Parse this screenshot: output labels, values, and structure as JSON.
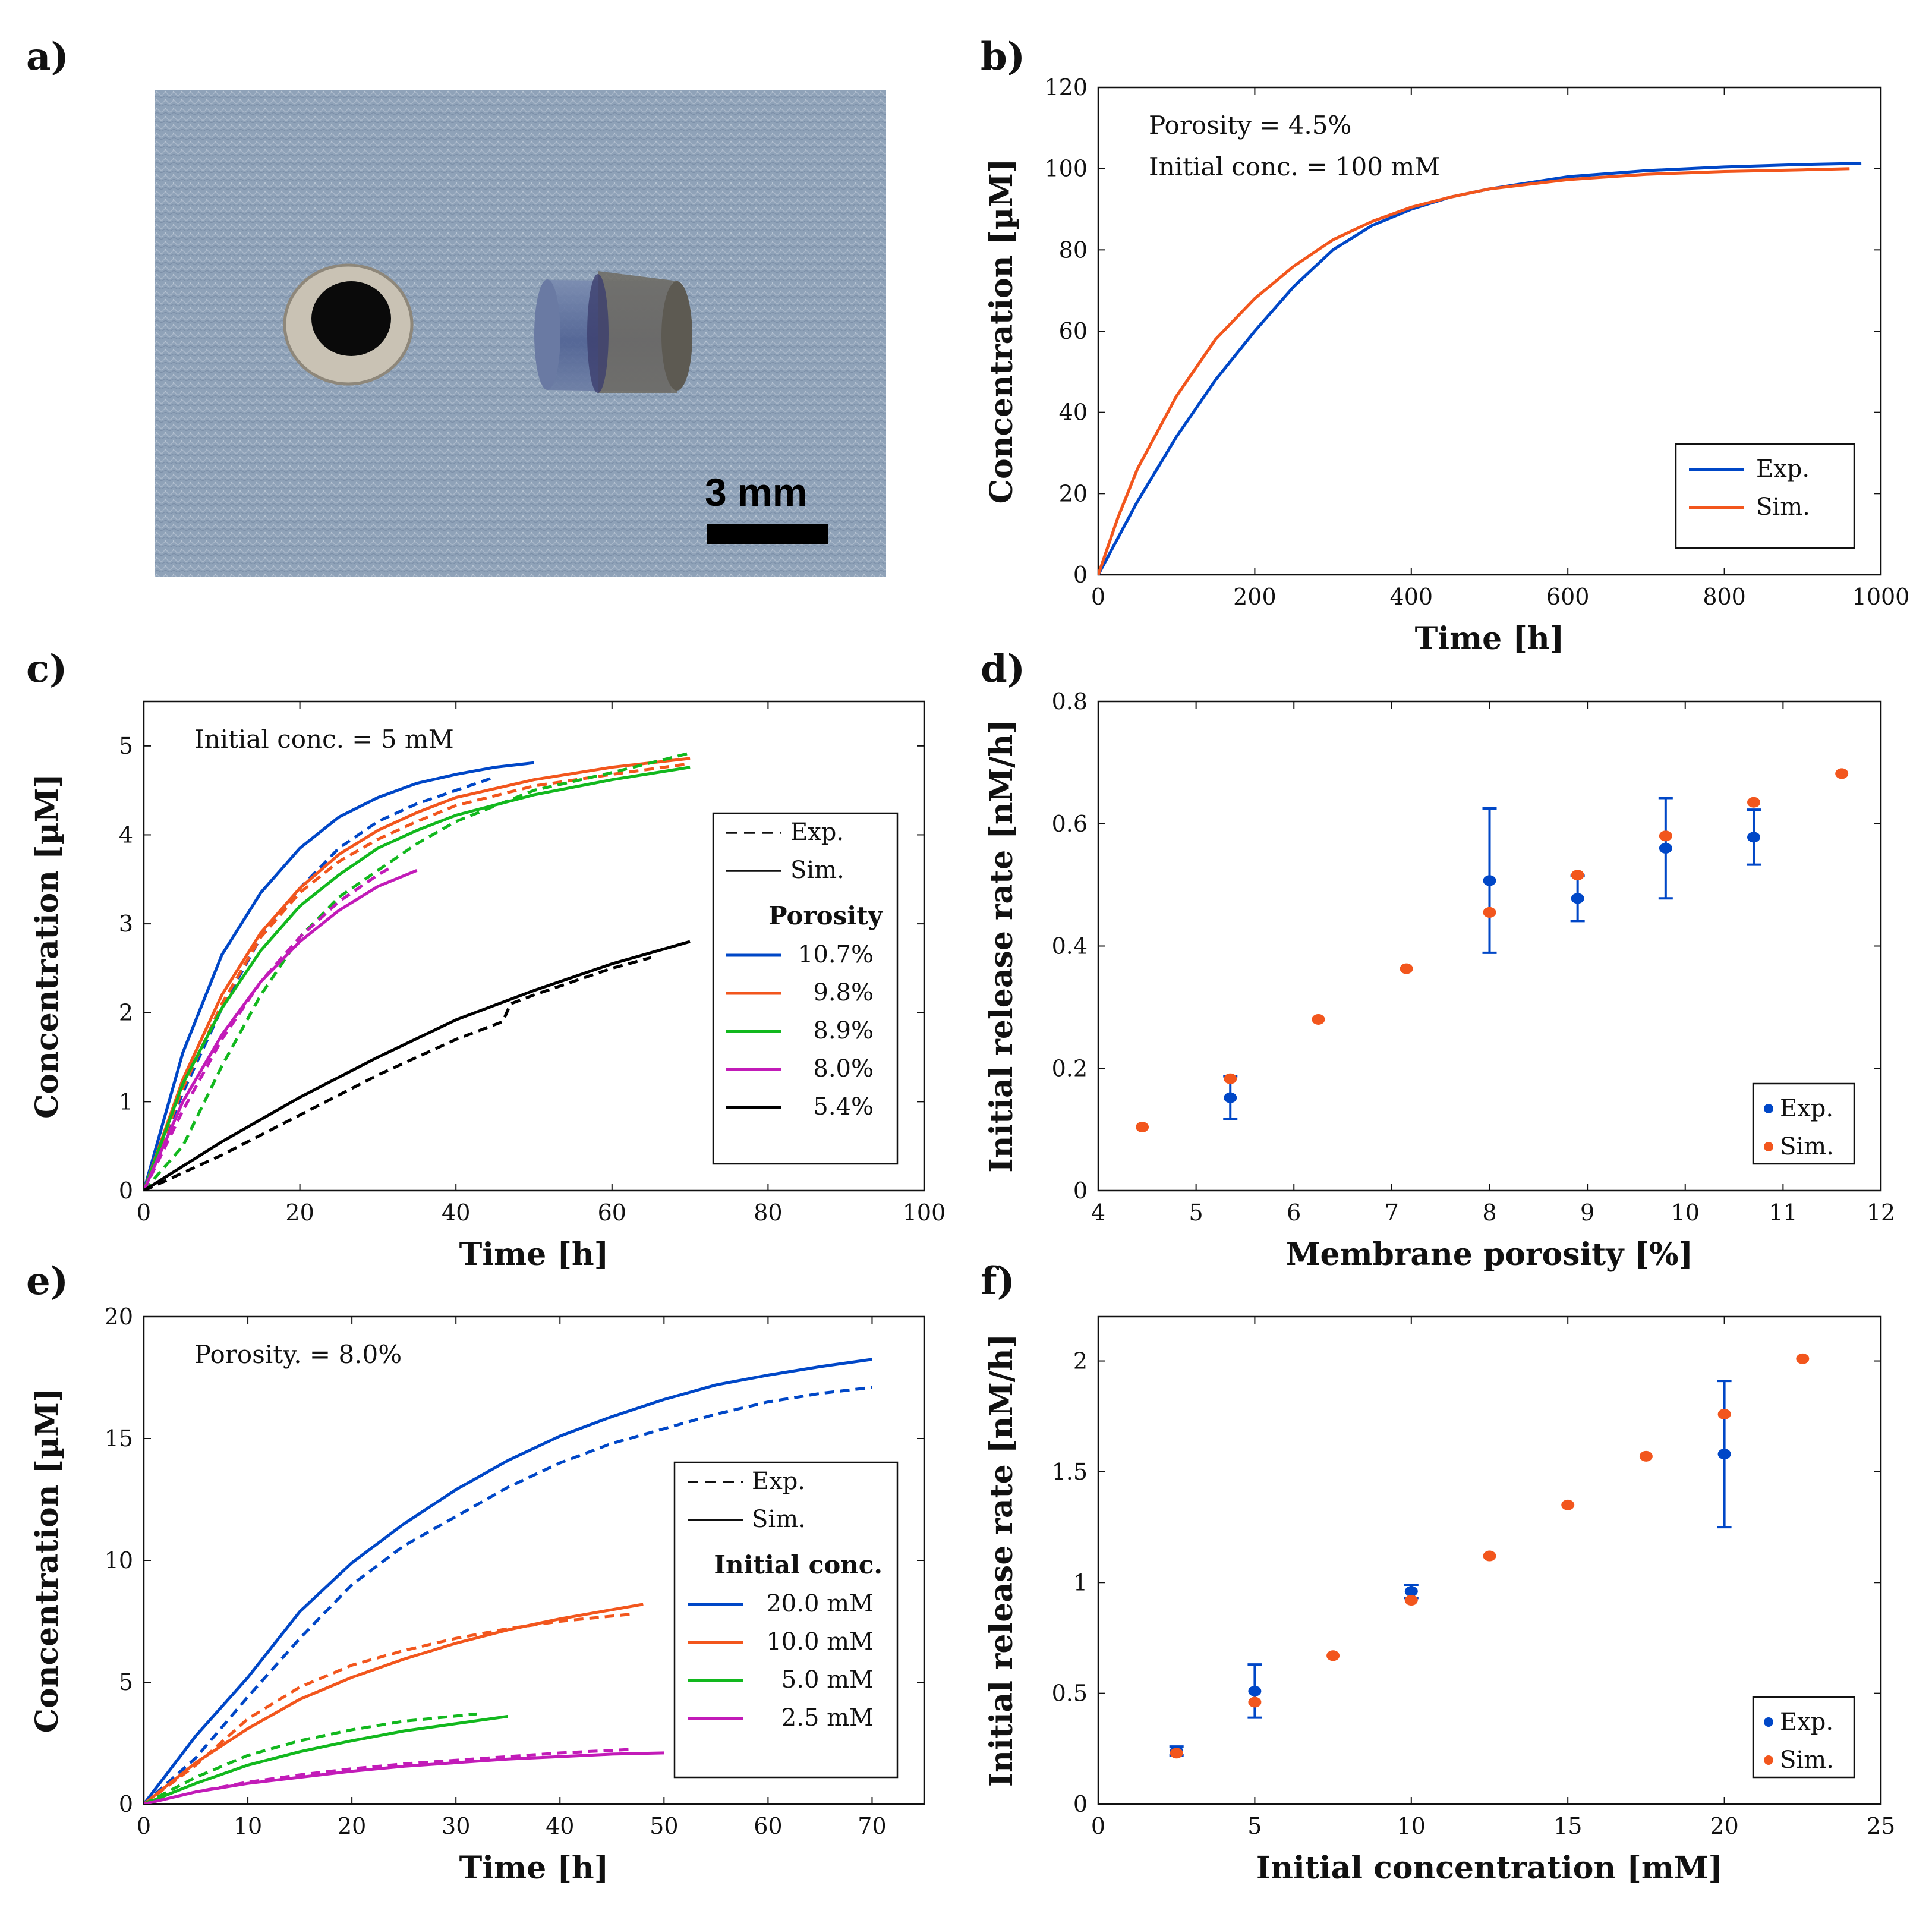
{
  "panels": {
    "a": "a)",
    "b": "b)",
    "c": "c)",
    "d": "d)",
    "e": "e)",
    "f": "f)"
  },
  "photo": {
    "scale_bar_label": "3 mm",
    "colors": {
      "background": "#8fa2b8",
      "ring": "#c9c2b4",
      "hole": "#0a0a0a",
      "cylinder": "#5d6f98",
      "cap": "#6e6b62",
      "scale_bar": "#000000"
    }
  },
  "colors": {
    "exp_blue": "#0047c7",
    "sim_orange": "#f2561d",
    "c_blue": "#0047c7",
    "c_orange": "#f2561d",
    "c_green": "#12b81e",
    "c_magenta": "#c21bb8",
    "c_black": "#000000"
  },
  "chart_data": [
    {
      "id": "b",
      "type": "line",
      "xlabel": "Time [h]",
      "ylabel": "Concentration [µM]",
      "xlim": [
        0,
        1000
      ],
      "ylim": [
        0,
        120
      ],
      "xticks": [
        0,
        200,
        400,
        600,
        800,
        1000
      ],
      "yticks": [
        0,
        20,
        40,
        60,
        80,
        100,
        120
      ],
      "annotations": [
        "Porosity = 4.5%",
        "Initial conc. = 100 mM"
      ],
      "legend_position": "bottom-right",
      "legend": [
        {
          "label": "Exp.",
          "color": "#0047c7",
          "style": "solid"
        },
        {
          "label": "Sim.",
          "color": "#f2561d",
          "style": "solid"
        }
      ],
      "series": [
        {
          "name": "Exp.",
          "color": "#0047c7",
          "style": "solid",
          "x": [
            0,
            25,
            50,
            100,
            150,
            200,
            250,
            300,
            350,
            400,
            450,
            500,
            600,
            700,
            800,
            900,
            975
          ],
          "y": [
            0,
            9,
            18,
            34,
            48,
            60,
            71,
            80,
            86,
            90,
            93,
            95,
            98,
            99.5,
            100.4,
            101,
            101.3
          ]
        },
        {
          "name": "Sim.",
          "color": "#f2561d",
          "style": "solid",
          "x": [
            0,
            25,
            50,
            100,
            150,
            200,
            250,
            300,
            350,
            400,
            450,
            500,
            600,
            700,
            800,
            900,
            960
          ],
          "y": [
            0,
            14,
            26,
            44,
            58,
            68,
            76,
            82.5,
            87,
            90.5,
            93,
            95,
            97.3,
            98.6,
            99.3,
            99.7,
            100
          ]
        }
      ]
    },
    {
      "id": "c",
      "type": "line",
      "xlabel": "Time [h]",
      "ylabel": "Concentration [µM]",
      "xlim": [
        0,
        100
      ],
      "ylim": [
        0,
        5.5
      ],
      "xticks": [
        0,
        20,
        40,
        60,
        80,
        100
      ],
      "yticks": [
        0,
        1,
        2,
        3,
        4,
        5
      ],
      "annotations": [
        "Initial conc. = 5 mM"
      ],
      "legend_position": "bottom-right",
      "legend_title": "Porosity",
      "legend_styles": [
        {
          "label": "Exp.",
          "style": "dashed"
        },
        {
          "label": "Sim.",
          "style": "solid"
        }
      ],
      "legend": [
        {
          "label": "10.7%",
          "color": "#0047c7"
        },
        {
          "label": "9.8%",
          "color": "#f2561d"
        },
        {
          "label": "8.9%",
          "color": "#12b81e"
        },
        {
          "label": "8.0%",
          "color": "#c21bb8"
        },
        {
          "label": "5.4%",
          "color": "#000000"
        }
      ],
      "series": [
        {
          "name": "10.7% Sim.",
          "color": "#0047c7",
          "style": "solid",
          "x": [
            0,
            5,
            10,
            15,
            20,
            25,
            30,
            35,
            40,
            45,
            50
          ],
          "y": [
            0,
            1.55,
            2.65,
            3.35,
            3.85,
            4.2,
            4.42,
            4.58,
            4.68,
            4.76,
            4.81
          ]
        },
        {
          "name": "10.7% Exp.",
          "color": "#0047c7",
          "style": "dashed",
          "x": [
            0,
            5,
            10,
            15,
            20,
            25,
            30,
            35,
            40,
            45
          ],
          "y": [
            0,
            1.1,
            2.05,
            2.85,
            3.4,
            3.85,
            4.15,
            4.35,
            4.5,
            4.65
          ]
        },
        {
          "name": "9.8% Sim.",
          "color": "#f2561d",
          "style": "solid",
          "x": [
            0,
            5,
            10,
            15,
            20,
            25,
            30,
            35,
            40,
            50,
            60,
            70
          ],
          "y": [
            0,
            1.25,
            2.2,
            2.9,
            3.4,
            3.78,
            4.05,
            4.25,
            4.42,
            4.62,
            4.76,
            4.86
          ]
        },
        {
          "name": "9.8% Exp.",
          "color": "#f2561d",
          "style": "dashed",
          "x": [
            0,
            5,
            10,
            15,
            20,
            25,
            30,
            35,
            40,
            50,
            60,
            70
          ],
          "y": [
            0,
            1.15,
            2.1,
            2.85,
            3.35,
            3.7,
            3.95,
            4.15,
            4.33,
            4.55,
            4.68,
            4.8
          ]
        },
        {
          "name": "8.9% Sim.",
          "color": "#12b81e",
          "style": "solid",
          "x": [
            0,
            5,
            10,
            15,
            20,
            25,
            30,
            35,
            40,
            50,
            60,
            70
          ],
          "y": [
            0,
            1.2,
            2.05,
            2.7,
            3.2,
            3.55,
            3.85,
            4.05,
            4.22,
            4.45,
            4.62,
            4.76
          ]
        },
        {
          "name": "8.9% Exp.",
          "color": "#12b81e",
          "style": "dashed",
          "x": [
            0,
            3,
            5,
            10,
            15,
            20,
            25,
            30,
            35,
            40,
            50,
            60,
            70
          ],
          "y": [
            0,
            0.3,
            0.5,
            1.4,
            2.2,
            2.85,
            3.3,
            3.6,
            3.9,
            4.15,
            4.5,
            4.7,
            4.92
          ]
        },
        {
          "name": "8.0% Sim.",
          "color": "#c21bb8",
          "style": "solid",
          "x": [
            0,
            5,
            10,
            15,
            20,
            25,
            30,
            35
          ],
          "y": [
            0,
            1.0,
            1.75,
            2.35,
            2.8,
            3.15,
            3.42,
            3.6
          ]
        },
        {
          "name": "8.0% Exp.",
          "color": "#c21bb8",
          "style": "dashed",
          "x": [
            0,
            5,
            10,
            15,
            20,
            25,
            30,
            32
          ],
          "y": [
            0,
            0.9,
            1.7,
            2.35,
            2.85,
            3.25,
            3.55,
            3.65
          ]
        },
        {
          "name": "5.4% Sim.",
          "color": "#000000",
          "style": "solid",
          "x": [
            0,
            10,
            20,
            30,
            40,
            50,
            60,
            70
          ],
          "y": [
            0,
            0.55,
            1.05,
            1.5,
            1.92,
            2.25,
            2.55,
            2.8
          ]
        },
        {
          "name": "5.4% Exp.",
          "color": "#000000",
          "style": "dashed",
          "x": [
            0,
            10,
            20,
            30,
            40,
            46,
            47,
            50,
            60,
            65
          ],
          "y": [
            0,
            0.4,
            0.85,
            1.3,
            1.7,
            1.9,
            2.1,
            2.2,
            2.5,
            2.62
          ]
        }
      ]
    },
    {
      "id": "d",
      "type": "scatter",
      "xlabel": "Membrane porosity [%]",
      "ylabel": "Initial release rate [nM/h]",
      "xlim": [
        4,
        12
      ],
      "ylim": [
        0,
        0.8
      ],
      "xticks": [
        4,
        5,
        6,
        7,
        8,
        9,
        10,
        11,
        12
      ],
      "yticks": [
        0,
        0.2,
        0.4,
        0.6,
        0.8
      ],
      "legend_position": "bottom-right",
      "legend": [
        {
          "label": "Exp.",
          "color": "#0047c7",
          "style": "marker"
        },
        {
          "label": "Sim.",
          "color": "#f2561d",
          "style": "marker"
        }
      ],
      "series": [
        {
          "name": "Exp.",
          "color": "#0047c7",
          "x": [
            5.35,
            8.0,
            8.9,
            9.8,
            10.7
          ],
          "y": [
            0.152,
            0.507,
            0.478,
            0.56,
            0.578
          ],
          "err": [
            0.035,
            0.118,
            0.037,
            0.082,
            0.045
          ]
        },
        {
          "name": "Sim.",
          "color": "#f2561d",
          "x": [
            4.45,
            5.35,
            6.25,
            7.15,
            8.0,
            8.9,
            9.8,
            10.7,
            11.6
          ],
          "y": [
            0.104,
            0.183,
            0.28,
            0.363,
            0.455,
            0.516,
            0.58,
            0.635,
            0.682
          ]
        }
      ]
    },
    {
      "id": "e",
      "type": "line",
      "xlabel": "Time [h]",
      "ylabel": "Concentration [µM]",
      "xlim": [
        0,
        75
      ],
      "ylim": [
        0,
        20
      ],
      "xticks": [
        0,
        10,
        20,
        30,
        40,
        50,
        60,
        70
      ],
      "yticks": [
        0,
        5,
        10,
        15,
        20
      ],
      "annotations": [
        "Porosity. = 8.0%"
      ],
      "legend_position": "bottom-right",
      "legend_title": "Initial conc.",
      "legend_styles": [
        {
          "label": "Exp.",
          "style": "dashed"
        },
        {
          "label": "Sim.",
          "style": "solid"
        }
      ],
      "legend": [
        {
          "label": "20.0 mM",
          "color": "#0047c7"
        },
        {
          "label": "10.0 mM",
          "color": "#f2561d"
        },
        {
          "label": "5.0 mM",
          "color": "#12b81e"
        },
        {
          "label": "2.5 mM",
          "color": "#c21bb8"
        }
      ],
      "series": [
        {
          "name": "20.0 mM Sim.",
          "color": "#0047c7",
          "style": "solid",
          "x": [
            0,
            5,
            10,
            15,
            20,
            25,
            30,
            35,
            40,
            45,
            50,
            55,
            60,
            65,
            70
          ],
          "y": [
            0,
            2.8,
            5.2,
            7.9,
            9.9,
            11.5,
            12.9,
            14.1,
            15.1,
            15.9,
            16.6,
            17.2,
            17.6,
            17.95,
            18.25
          ]
        },
        {
          "name": "20.0 mM Exp.",
          "color": "#0047c7",
          "style": "dashed",
          "x": [
            0,
            5,
            10,
            15,
            20,
            25,
            30,
            35,
            40,
            45,
            50,
            55,
            60,
            65,
            70
          ],
          "y": [
            0,
            1.9,
            4.4,
            6.8,
            9.0,
            10.6,
            11.8,
            13.0,
            14.0,
            14.8,
            15.4,
            16.0,
            16.5,
            16.85,
            17.1
          ]
        },
        {
          "name": "10.0 mM Sim.",
          "color": "#f2561d",
          "style": "solid",
          "x": [
            0,
            5,
            10,
            15,
            20,
            25,
            30,
            35,
            40,
            48
          ],
          "y": [
            0,
            1.7,
            3.1,
            4.3,
            5.2,
            5.95,
            6.6,
            7.15,
            7.6,
            8.2
          ]
        },
        {
          "name": "10.0 mM Exp.",
          "color": "#f2561d",
          "style": "dashed",
          "x": [
            0,
            5,
            10,
            15,
            20,
            25,
            30,
            35,
            40,
            47
          ],
          "y": [
            0,
            1.6,
            3.5,
            4.8,
            5.7,
            6.3,
            6.8,
            7.2,
            7.5,
            7.8
          ]
        },
        {
          "name": "5.0 mM Sim.",
          "color": "#12b81e",
          "style": "solid",
          "x": [
            0,
            5,
            10,
            15,
            20,
            25,
            30,
            35
          ],
          "y": [
            0,
            0.85,
            1.6,
            2.15,
            2.6,
            3.0,
            3.3,
            3.6
          ]
        },
        {
          "name": "5.0 mM Exp.",
          "color": "#12b81e",
          "style": "dashed",
          "x": [
            0,
            5,
            10,
            15,
            20,
            25,
            32
          ],
          "y": [
            0,
            1.1,
            2.0,
            2.6,
            3.05,
            3.4,
            3.7
          ]
        },
        {
          "name": "2.5 mM Sim.",
          "color": "#c21bb8",
          "style": "solid",
          "x": [
            0,
            5,
            10,
            15,
            20,
            25,
            30,
            35,
            40,
            45,
            50
          ],
          "y": [
            0,
            0.5,
            0.85,
            1.1,
            1.35,
            1.55,
            1.7,
            1.85,
            1.95,
            2.05,
            2.1
          ]
        },
        {
          "name": "2.5 mM Exp.",
          "color": "#c21bb8",
          "style": "dashed",
          "x": [
            0,
            5,
            10,
            15,
            20,
            25,
            30,
            35,
            40,
            47
          ],
          "y": [
            0,
            0.5,
            0.9,
            1.2,
            1.45,
            1.65,
            1.8,
            1.95,
            2.1,
            2.25
          ]
        }
      ]
    },
    {
      "id": "f",
      "type": "scatter",
      "xlabel": "Initial concentration [mM]",
      "ylabel": "Initial release rate [nM/h]",
      "xlim": [
        0,
        25
      ],
      "ylim": [
        0,
        2.2
      ],
      "xticks": [
        0,
        5,
        10,
        15,
        20,
        25
      ],
      "yticks": [
        0,
        0.5,
        1,
        1.5,
        2
      ],
      "legend_position": "bottom-right",
      "legend": [
        {
          "label": "Exp.",
          "color": "#0047c7",
          "style": "marker"
        },
        {
          "label": "Sim.",
          "color": "#f2561d",
          "style": "marker"
        }
      ],
      "series": [
        {
          "name": "Exp.",
          "color": "#0047c7",
          "x": [
            2.5,
            5,
            10,
            20
          ],
          "y": [
            0.24,
            0.51,
            0.96,
            1.58
          ],
          "err": [
            0.02,
            0.12,
            0.03,
            0.33
          ]
        },
        {
          "name": "Sim.",
          "color": "#f2561d",
          "x": [
            2.5,
            5,
            7.5,
            10,
            12.5,
            15,
            17.5,
            20,
            22.5
          ],
          "y": [
            0.23,
            0.46,
            0.67,
            0.92,
            1.12,
            1.35,
            1.57,
            1.76,
            2.01
          ]
        }
      ]
    }
  ]
}
